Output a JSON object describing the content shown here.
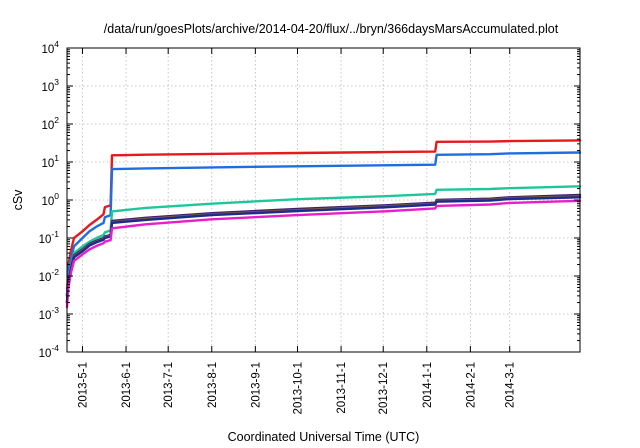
{
  "chart_data": {
    "type": "line",
    "title": "/data/run/goesPlots/archive/2014-04-20/flux/../bryn/366daysMarsAccumulated.plot",
    "xlabel": "Coordinated Universal Time (UTC)",
    "ylabel": "cSv",
    "yscale": "log",
    "ylim": [
      0.0001,
      10000
    ],
    "xlim": [
      "2013-04-20",
      "2014-04-20"
    ],
    "y_ticks": [
      {
        "base": "10",
        "exp": "-4"
      },
      {
        "base": "10",
        "exp": "-3"
      },
      {
        "base": "10",
        "exp": "-2"
      },
      {
        "base": "10",
        "exp": "-1"
      },
      {
        "base": "10",
        "exp": "0"
      },
      {
        "base": "10",
        "exp": "1"
      },
      {
        "base": "10",
        "exp": "2"
      },
      {
        "base": "10",
        "exp": "3"
      },
      {
        "base": "10",
        "exp": "4"
      }
    ],
    "x_ticks": [
      {
        "label": "2013-5-1",
        "date": "2013-05-01"
      },
      {
        "label": "2013-6-1",
        "date": "2013-06-01"
      },
      {
        "label": "2013-7-1",
        "date": "2013-07-01"
      },
      {
        "label": "2013-8-1",
        "date": "2013-08-01"
      },
      {
        "label": "2013-9-1",
        "date": "2013-09-01"
      },
      {
        "label": "2013-10-1",
        "date": "2013-10-01"
      },
      {
        "label": "2013-11-1",
        "date": "2013-11-01"
      },
      {
        "label": "2013-12-1",
        "date": "2013-12-01"
      },
      {
        "label": "2014-1-1",
        "date": "2014-01-01"
      },
      {
        "label": "2014-2-1",
        "date": "2014-02-01"
      },
      {
        "label": "2014-3-1",
        "date": "2014-03-01"
      }
    ],
    "grid": true,
    "legend": "none",
    "series": [
      {
        "color": "#e8191c",
        "points": [
          [
            "2013-04-20",
            0.003
          ],
          [
            "2013-04-21",
            0.02
          ],
          [
            "2013-04-23",
            0.05
          ],
          [
            "2013-04-25",
            0.1
          ],
          [
            "2013-05-01",
            0.15
          ],
          [
            "2013-05-06",
            0.22
          ],
          [
            "2013-05-11",
            0.3
          ],
          [
            "2013-05-16",
            0.42
          ],
          [
            "2013-05-17",
            0.65
          ],
          [
            "2013-05-21",
            0.72
          ],
          [
            "2013-05-22",
            15
          ],
          [
            "2013-06-15",
            15.6
          ],
          [
            "2013-08-01",
            16.3
          ],
          [
            "2013-10-01",
            17.2
          ],
          [
            "2013-12-01",
            18.2
          ],
          [
            "2014-01-07",
            18.8
          ],
          [
            "2014-01-08",
            34
          ],
          [
            "2014-02-15",
            34.5
          ],
          [
            "2014-03-01",
            35.5
          ],
          [
            "2014-04-20",
            37
          ]
        ]
      },
      {
        "color": "#1f6ee0",
        "points": [
          [
            "2013-04-20",
            0.003
          ],
          [
            "2013-04-21",
            0.015
          ],
          [
            "2013-04-23",
            0.03
          ],
          [
            "2013-04-25",
            0.06
          ],
          [
            "2013-05-01",
            0.1
          ],
          [
            "2013-05-06",
            0.15
          ],
          [
            "2013-05-11",
            0.2
          ],
          [
            "2013-05-16",
            0.25
          ],
          [
            "2013-05-17",
            0.35
          ],
          [
            "2013-05-21",
            0.4
          ],
          [
            "2013-05-22",
            6.5
          ],
          [
            "2013-06-15",
            6.8
          ],
          [
            "2013-08-01",
            7.2
          ],
          [
            "2013-10-01",
            7.7
          ],
          [
            "2013-12-01",
            8.2
          ],
          [
            "2014-01-07",
            8.5
          ],
          [
            "2014-01-08",
            15.5
          ],
          [
            "2014-02-15",
            16
          ],
          [
            "2014-03-01",
            16.8
          ],
          [
            "2014-04-20",
            17.8
          ]
        ]
      },
      {
        "color": "#1dc79a",
        "points": [
          [
            "2013-04-20",
            0.002
          ],
          [
            "2013-04-21",
            0.008
          ],
          [
            "2013-04-23",
            0.02
          ],
          [
            "2013-04-25",
            0.04
          ],
          [
            "2013-05-01",
            0.06
          ],
          [
            "2013-05-06",
            0.08
          ],
          [
            "2013-05-11",
            0.1
          ],
          [
            "2013-05-16",
            0.12
          ],
          [
            "2013-05-17",
            0.14
          ],
          [
            "2013-05-21",
            0.16
          ],
          [
            "2013-05-22",
            0.5
          ],
          [
            "2013-06-15",
            0.62
          ],
          [
            "2013-08-01",
            0.8
          ],
          [
            "2013-10-01",
            1.05
          ],
          [
            "2013-12-01",
            1.25
          ],
          [
            "2014-01-07",
            1.45
          ],
          [
            "2014-01-08",
            1.85
          ],
          [
            "2014-02-15",
            1.95
          ],
          [
            "2014-03-01",
            2.05
          ],
          [
            "2014-04-20",
            2.3
          ]
        ]
      },
      {
        "color": "#3f1f6b",
        "points": [
          [
            "2013-04-20",
            0.002
          ],
          [
            "2013-04-21",
            0.007
          ],
          [
            "2013-04-23",
            0.018
          ],
          [
            "2013-04-25",
            0.035
          ],
          [
            "2013-05-01",
            0.05
          ],
          [
            "2013-05-06",
            0.07
          ],
          [
            "2013-05-11",
            0.085
          ],
          [
            "2013-05-16",
            0.1
          ],
          [
            "2013-05-17",
            0.11
          ],
          [
            "2013-05-21",
            0.12
          ],
          [
            "2013-05-22",
            0.28
          ],
          [
            "2013-06-15",
            0.34
          ],
          [
            "2013-08-01",
            0.45
          ],
          [
            "2013-10-01",
            0.58
          ],
          [
            "2013-12-01",
            0.72
          ],
          [
            "2014-01-07",
            0.85
          ],
          [
            "2014-01-08",
            1.0
          ],
          [
            "2014-02-15",
            1.08
          ],
          [
            "2014-03-01",
            1.18
          ],
          [
            "2014-04-20",
            1.35
          ]
        ]
      },
      {
        "color": "#7a5a42",
        "points": [
          [
            "2013-04-20",
            0.002
          ],
          [
            "2013-04-21",
            0.007
          ],
          [
            "2013-04-23",
            0.017
          ],
          [
            "2013-04-25",
            0.033
          ],
          [
            "2013-05-01",
            0.048
          ],
          [
            "2013-05-06",
            0.066
          ],
          [
            "2013-05-11",
            0.08
          ],
          [
            "2013-05-16",
            0.095
          ],
          [
            "2013-05-17",
            0.105
          ],
          [
            "2013-05-21",
            0.115
          ],
          [
            "2013-05-22",
            0.26
          ],
          [
            "2013-06-15",
            0.32
          ],
          [
            "2013-08-01",
            0.42
          ],
          [
            "2013-10-01",
            0.54
          ],
          [
            "2013-12-01",
            0.68
          ],
          [
            "2014-01-07",
            0.8
          ],
          [
            "2014-01-08",
            0.95
          ],
          [
            "2014-02-15",
            1.02
          ],
          [
            "2014-03-01",
            1.12
          ],
          [
            "2014-04-20",
            1.25
          ]
        ]
      },
      {
        "color": "#1c2b8c",
        "points": [
          [
            "2013-04-20",
            0.002
          ],
          [
            "2013-04-21",
            0.0065
          ],
          [
            "2013-04-23",
            0.016
          ],
          [
            "2013-04-25",
            0.031
          ],
          [
            "2013-05-01",
            0.045
          ],
          [
            "2013-05-06",
            0.063
          ],
          [
            "2013-05-11",
            0.077
          ],
          [
            "2013-05-16",
            0.09
          ],
          [
            "2013-05-17",
            0.1
          ],
          [
            "2013-05-21",
            0.11
          ],
          [
            "2013-05-22",
            0.25
          ],
          [
            "2013-06-15",
            0.3
          ],
          [
            "2013-08-01",
            0.4
          ],
          [
            "2013-10-01",
            0.51
          ],
          [
            "2013-12-01",
            0.64
          ],
          [
            "2014-01-07",
            0.76
          ],
          [
            "2014-01-08",
            0.9
          ],
          [
            "2014-02-15",
            0.97
          ],
          [
            "2014-03-01",
            1.06
          ],
          [
            "2014-04-20",
            1.18
          ]
        ]
      },
      {
        "color": "#e81ec8",
        "points": [
          [
            "2013-04-20",
            0.0015
          ],
          [
            "2013-04-21",
            0.005
          ],
          [
            "2013-04-23",
            0.013
          ],
          [
            "2013-04-25",
            0.025
          ],
          [
            "2013-05-01",
            0.037
          ],
          [
            "2013-05-06",
            0.05
          ],
          [
            "2013-05-11",
            0.062
          ],
          [
            "2013-05-16",
            0.073
          ],
          [
            "2013-05-17",
            0.08
          ],
          [
            "2013-05-21",
            0.088
          ],
          [
            "2013-05-22",
            0.18
          ],
          [
            "2013-06-15",
            0.23
          ],
          [
            "2013-08-01",
            0.31
          ],
          [
            "2013-10-01",
            0.4
          ],
          [
            "2013-12-01",
            0.5
          ],
          [
            "2014-01-07",
            0.6
          ],
          [
            "2014-01-08",
            0.7
          ],
          [
            "2014-02-15",
            0.76
          ],
          [
            "2014-03-01",
            0.84
          ],
          [
            "2014-04-20",
            0.95
          ]
        ]
      }
    ]
  }
}
